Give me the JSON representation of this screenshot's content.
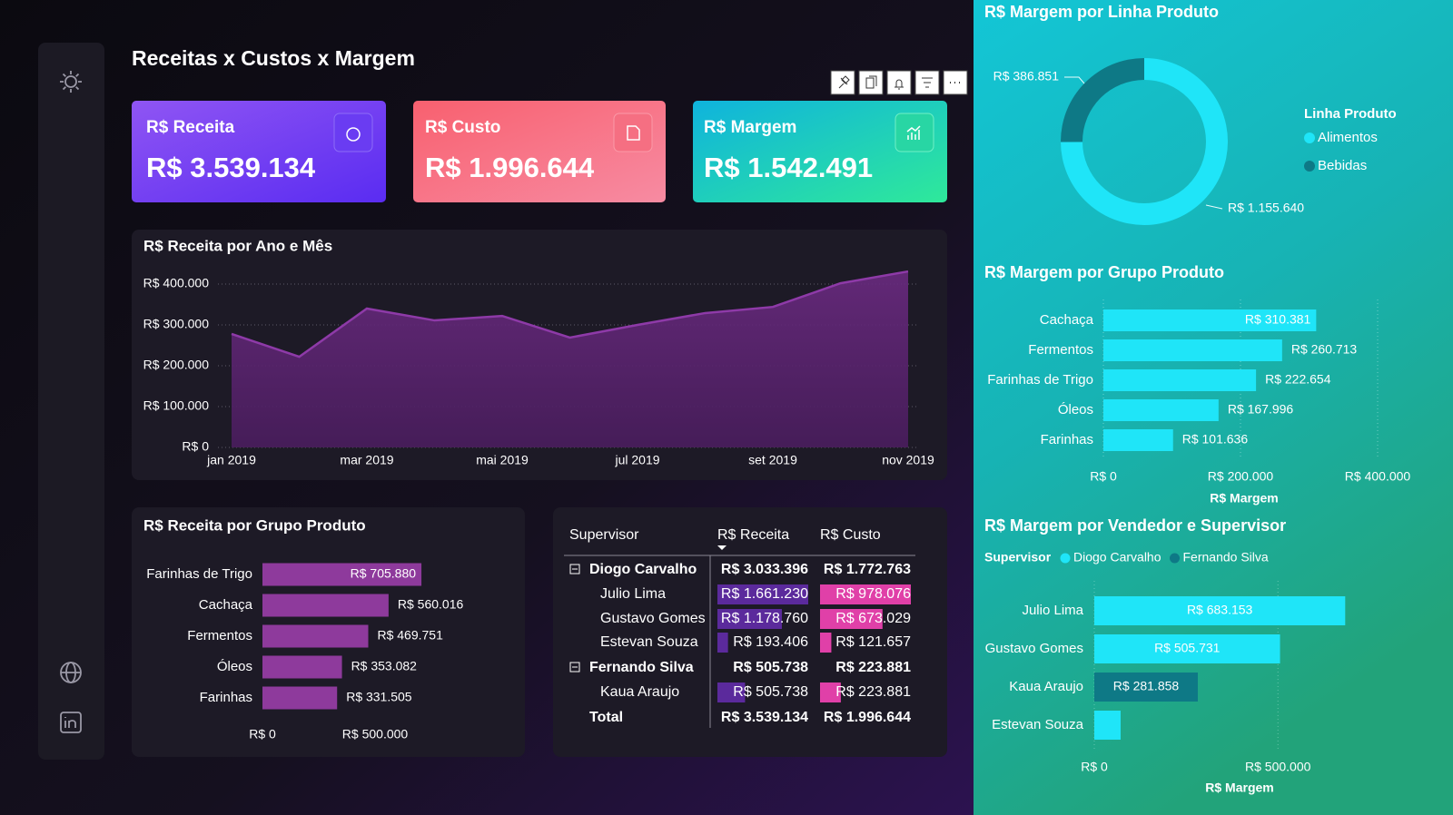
{
  "title": "Receitas x Custos x Margem",
  "cards": [
    {
      "label": "R$ Receita",
      "value": "R$ 3.539.134"
    },
    {
      "label": "R$ Custo",
      "value": "R$ 1.996.644"
    },
    {
      "label": "R$ Margem",
      "value": "R$ 1.542.491"
    }
  ],
  "chart_data": [
    {
      "type": "area",
      "title": "R$ Receita por Ano e Mês",
      "categories": [
        "jan 2019",
        null,
        "mar 2019",
        null,
        "mai 2019",
        null,
        "jul 2019",
        null,
        "set 2019",
        null,
        "nov 2019"
      ],
      "values": [
        278000,
        222000,
        340000,
        311000,
        322000,
        269000,
        300000,
        329000,
        344000,
        402000,
        431000
      ],
      "color": "#8e3aa8",
      "ylim": [
        0,
        440000
      ],
      "yticks": [
        {
          "value": 0,
          "label": "R$ 0"
        },
        {
          "value": 100000,
          "label": "R$ 100.000"
        },
        {
          "value": 200000,
          "label": "R$ 200.000"
        },
        {
          "value": 300000,
          "label": "R$ 300.000"
        },
        {
          "value": 400000,
          "label": "R$ 400.000"
        }
      ],
      "grid": true
    },
    {
      "type": "hbar",
      "title": "R$ Receita por Grupo Produto",
      "categories": [
        "Farinhas de Trigo",
        "Cachaça",
        "Fermentos",
        "Óleos",
        "Farinhas"
      ],
      "values": [
        705880,
        560016,
        469751,
        353082,
        331505
      ],
      "value_labels": [
        "R$ 705.880",
        "R$ 560.016",
        "R$ 469.751",
        "R$ 353.082",
        "R$ 331.505"
      ],
      "color": "#8e3a9c",
      "xlim": [
        0,
        1000000
      ],
      "xticks": [
        {
          "value": 0,
          "label": "R$ 0"
        },
        {
          "value": 500000,
          "label": "R$ 500.000"
        }
      ],
      "grid": false
    },
    {
      "type": "donut",
      "title": "R$ Margem por Linha Produto",
      "legend_title": "Linha Produto",
      "categories": [
        "Alimentos",
        "Bebidas"
      ],
      "values": [
        1155640,
        386851
      ],
      "value_labels": [
        "R$ 1.155.640",
        "R$ 386.851"
      ],
      "colors": [
        "#1fe5f8",
        "#0e7986"
      ]
    },
    {
      "type": "hbar",
      "title": "R$ Margem por Grupo Produto",
      "xlabel": "R$ Margem",
      "categories": [
        "Cachaça",
        "Fermentos",
        "Farinhas de Trigo",
        "Óleos",
        "Farinhas"
      ],
      "values": [
        310381,
        260713,
        222654,
        167996,
        101636
      ],
      "value_labels": [
        "R$ 310.381",
        "R$ 260.713",
        "R$ 222.654",
        "R$ 167.996",
        "R$ 101.636"
      ],
      "color": "#1fe5f8",
      "xlim": [
        0,
        400000
      ],
      "xticks": [
        {
          "value": 0,
          "label": "R$ 0"
        },
        {
          "value": 200000,
          "label": "R$ 200.000"
        },
        {
          "value": 400000,
          "label": "R$ 400.000"
        }
      ],
      "grid": true
    },
    {
      "type": "grouped-hbar",
      "title": "R$ Margem por Vendedor e Supervisor",
      "xlabel": "R$ Margem",
      "legend_title": "Supervisor",
      "categories": [
        "Julio Lima",
        "Gustavo Gomes",
        "Kaua Araujo",
        "Estevan Souza"
      ],
      "series": [
        {
          "name": "Diogo Carvalho",
          "color": "#1fe5f8",
          "values": [
            683153,
            505731,
            null,
            71749
          ],
          "value_labels": [
            "R$ 683.153",
            "R$ 505.731",
            null,
            null
          ]
        },
        {
          "name": "Fernando Silva",
          "color": "#0e7986",
          "values": [
            null,
            null,
            281858,
            null
          ],
          "value_labels": [
            null,
            null,
            "R$ 281.858",
            null
          ]
        }
      ],
      "xlim": [
        0,
        900000
      ],
      "xticks": [
        {
          "value": 0,
          "label": "R$ 0"
        },
        {
          "value": 500000,
          "label": "R$ 500.000"
        }
      ],
      "grid": true
    }
  ],
  "table": {
    "columns": [
      "Supervisor",
      "R$ Receita",
      "R$ Custo"
    ],
    "groups": [
      {
        "name": "Diogo Carvalho",
        "receita": {
          "value": 3033396,
          "label": "R$ 3.033.396"
        },
        "custo": {
          "value": 1772763,
          "label": "R$ 1.772.763"
        },
        "children": [
          {
            "name": "Julio Lima",
            "receita": {
              "value": 1661230,
              "label": "R$ 1.661.230"
            },
            "custo": {
              "value": 978076,
              "label": "R$ 978.076"
            }
          },
          {
            "name": "Gustavo Gomes",
            "receita": {
              "value": 1178760,
              "label": "R$ 1.178.760"
            },
            "custo": {
              "value": 673029,
              "label": "R$ 673.029"
            }
          },
          {
            "name": "Estevan Souza",
            "receita": {
              "value": 193406,
              "label": "R$ 193.406"
            },
            "custo": {
              "value": 121657,
              "label": "R$ 121.657"
            }
          }
        ]
      },
      {
        "name": "Fernando Silva",
        "receita": {
          "value": 505738,
          "label": "R$ 505.738"
        },
        "custo": {
          "value": 223881,
          "label": "R$ 223.881"
        },
        "children": [
          {
            "name": "Kaua Araujo",
            "receita": {
              "value": 505738,
              "label": "R$ 505.738"
            },
            "custo": {
              "value": 223881,
              "label": "R$ 223.881"
            }
          }
        ]
      }
    ],
    "total": {
      "name": "Total",
      "receita": {
        "value": 3539134,
        "label": "R$ 3.539.134"
      },
      "custo": {
        "value": 1996644,
        "label": "R$ 1.996.644"
      }
    }
  }
}
